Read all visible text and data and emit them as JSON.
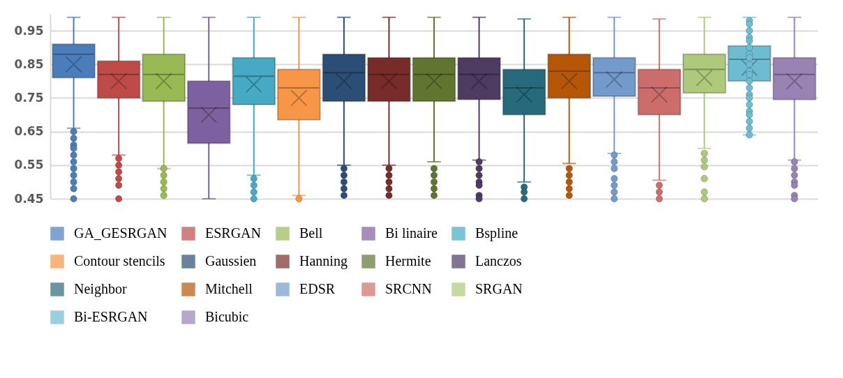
{
  "chart_data": {
    "type": "box",
    "categories": [
      null,
      null,
      null,
      null,
      null,
      null,
      null,
      null,
      null,
      null,
      null,
      null,
      null,
      null,
      null,
      null,
      null
    ],
    "ylim": [
      0.45,
      1.0
    ],
    "yticks": [
      0.45,
      0.55,
      0.65,
      0.75,
      0.85,
      0.95
    ],
    "grid": "y",
    "legend": "bottom",
    "tick_labels": "y",
    "series": [
      {
        "name": "GA_GESRGAN",
        "color": "#4a7ebb",
        "boxes": [
          {
            "low": 0.66,
            "q1": 0.81,
            "median": 0.88,
            "q3": 0.91,
            "high": 0.99,
            "mean": 0.85,
            "outliers": [
              0.65,
              0.63,
              0.61,
              0.6,
              0.58,
              0.56,
              0.54,
              0.52,
              0.5,
              0.48,
              0.45
            ]
          },
          null,
          null,
          null,
          null,
          null,
          null,
          null,
          null,
          null,
          null,
          null,
          null,
          null,
          null,
          null,
          null
        ]
      },
      {
        "name": "ESRGAN",
        "color": "#be4b48",
        "boxes": [
          null,
          {
            "low": 0.58,
            "q1": 0.75,
            "median": 0.82,
            "q3": 0.86,
            "high": 0.99,
            "mean": 0.8,
            "outliers": [
              0.57,
              0.55,
              0.53,
              0.51,
              0.49,
              0.45
            ]
          },
          null,
          null,
          null,
          null,
          null,
          null,
          null,
          null,
          null,
          null,
          null,
          null,
          null,
          null,
          null
        ]
      },
      {
        "name": "Bell",
        "color": "#98b954",
        "boxes": [
          null,
          null,
          {
            "low": 0.54,
            "q1": 0.74,
            "median": 0.82,
            "q3": 0.88,
            "high": 0.99,
            "mean": 0.8,
            "outliers": [
              0.54,
              0.52,
              0.5,
              0.48,
              0.46
            ]
          },
          null,
          null,
          null,
          null,
          null,
          null,
          null,
          null,
          null,
          null,
          null,
          null,
          null,
          null
        ]
      },
      {
        "name": "Bi linaire",
        "color": "#7d60a0",
        "boxes": [
          null,
          null,
          null,
          {
            "low": 0.45,
            "q1": 0.615,
            "median": 0.72,
            "q3": 0.8,
            "high": 0.99,
            "mean": 0.7
          },
          null,
          null,
          null,
          null,
          null,
          null,
          null,
          null,
          null,
          null,
          null,
          null,
          null
        ]
      },
      {
        "name": "Bspline",
        "color": "#46aac5",
        "boxes": [
          null,
          null,
          null,
          null,
          {
            "low": 0.52,
            "q1": 0.73,
            "median": 0.815,
            "q3": 0.87,
            "high": 0.99,
            "mean": 0.79,
            "outliers": [
              0.51,
              0.49,
              0.47,
              0.45
            ]
          },
          null,
          null,
          null,
          null,
          null,
          null,
          null,
          null,
          null,
          null,
          null,
          null
        ]
      },
      {
        "name": "Contour stencils",
        "color": "#f79646",
        "boxes": [
          null,
          null,
          null,
          null,
          null,
          {
            "low": 0.46,
            "q1": 0.685,
            "median": 0.78,
            "q3": 0.835,
            "high": 0.99,
            "mean": 0.75,
            "outliers": [
              0.45
            ]
          },
          null,
          null,
          null,
          null,
          null,
          null,
          null,
          null,
          null,
          null,
          null
        ]
      },
      {
        "name": "Gaussien",
        "color": "#2c4d75",
        "boxes": [
          null,
          null,
          null,
          null,
          null,
          null,
          {
            "low": 0.55,
            "q1": 0.74,
            "median": 0.825,
            "q3": 0.88,
            "high": 0.99,
            "mean": 0.8,
            "outliers": [
              0.54,
              0.52,
              0.5,
              0.48,
              0.46
            ]
          },
          null,
          null,
          null,
          null,
          null,
          null,
          null,
          null,
          null,
          null
        ]
      },
      {
        "name": "Hanning",
        "color": "#772c2a",
        "boxes": [
          null,
          null,
          null,
          null,
          null,
          null,
          null,
          {
            "low": 0.55,
            "q1": 0.74,
            "median": 0.82,
            "q3": 0.87,
            "high": 0.99,
            "mean": 0.8,
            "outliers": [
              0.54,
              0.52,
              0.5,
              0.48,
              0.46
            ]
          },
          null,
          null,
          null,
          null,
          null,
          null,
          null,
          null,
          null
        ]
      },
      {
        "name": "Hermite",
        "color": "#5f7530",
        "boxes": [
          null,
          null,
          null,
          null,
          null,
          null,
          null,
          null,
          {
            "low": 0.56,
            "q1": 0.74,
            "median": 0.82,
            "q3": 0.87,
            "high": 0.99,
            "mean": 0.8,
            "outliers": [
              0.54,
              0.52,
              0.5,
              0.48,
              0.46
            ]
          },
          null,
          null,
          null,
          null,
          null,
          null,
          null,
          null
        ]
      },
      {
        "name": "Lanczos",
        "color": "#4d3b62",
        "boxes": [
          null,
          null,
          null,
          null,
          null,
          null,
          null,
          null,
          null,
          {
            "low": 0.565,
            "q1": 0.745,
            "median": 0.82,
            "q3": 0.87,
            "high": 0.99,
            "mean": 0.8,
            "outliers": [
              0.56,
              0.54,
              0.52,
              0.5,
              0.49,
              0.46,
              0.45
            ]
          },
          null,
          null,
          null,
          null,
          null,
          null,
          null
        ]
      },
      {
        "name": "Neighbor",
        "color": "#276a7c",
        "boxes": [
          null,
          null,
          null,
          null,
          null,
          null,
          null,
          null,
          null,
          null,
          {
            "low": 0.5,
            "q1": 0.7,
            "median": 0.78,
            "q3": 0.835,
            "high": 0.985,
            "mean": 0.76,
            "outliers": [
              0.485,
              0.47,
              0.45
            ]
          },
          null,
          null,
          null,
          null,
          null,
          null
        ]
      },
      {
        "name": "Mitchell",
        "color": "#b65708",
        "boxes": [
          null,
          null,
          null,
          null,
          null,
          null,
          null,
          null,
          null,
          null,
          null,
          {
            "low": 0.555,
            "q1": 0.75,
            "median": 0.83,
            "q3": 0.88,
            "high": 0.99,
            "mean": 0.8,
            "outliers": [
              0.54,
              0.52,
              0.5,
              0.48,
              0.46
            ]
          },
          null,
          null,
          null,
          null,
          null
        ]
      },
      {
        "name": "EDSR",
        "color": "#729aca",
        "boxes": [
          null,
          null,
          null,
          null,
          null,
          null,
          null,
          null,
          null,
          null,
          null,
          null,
          {
            "low": 0.585,
            "q1": 0.755,
            "median": 0.825,
            "q3": 0.87,
            "high": 0.99,
            "mean": 0.805,
            "outliers": [
              0.58,
              0.56,
              0.54,
              0.51,
              0.49,
              0.47,
              0.45
            ]
          },
          null,
          null,
          null,
          null
        ]
      },
      {
        "name": "SRCNN",
        "color": "#cd6d6b",
        "boxes": [
          null,
          null,
          null,
          null,
          null,
          null,
          null,
          null,
          null,
          null,
          null,
          null,
          null,
          {
            "low": 0.505,
            "q1": 0.7,
            "median": 0.78,
            "q3": 0.835,
            "high": 0.985,
            "mean": 0.76,
            "outliers": [
              0.49,
              0.47,
              0.45
            ]
          },
          null,
          null,
          null
        ]
      },
      {
        "name": "SRGAN",
        "color": "#afc97a",
        "boxes": [
          null,
          null,
          null,
          null,
          null,
          null,
          null,
          null,
          null,
          null,
          null,
          null,
          null,
          null,
          {
            "low": 0.6,
            "q1": 0.765,
            "median": 0.835,
            "q3": 0.88,
            "high": 0.99,
            "mean": 0.81,
            "outliers": [
              0.585,
              0.565,
              0.545,
              0.51,
              0.47,
              0.45
            ]
          },
          null,
          null
        ]
      },
      {
        "name": "Bi-ESRGAN",
        "color": "#6dbcd1",
        "boxes": [
          null,
          null,
          null,
          null,
          null,
          null,
          null,
          null,
          null,
          null,
          null,
          null,
          null,
          null,
          null,
          {
            "low": 0.64,
            "q1": 0.8,
            "median": 0.865,
            "q3": 0.905,
            "high": 0.99,
            "mean": 0.84,
            "outliers": [
              0.98,
              0.97,
              0.95,
              0.93,
              0.92,
              0.9,
              0.88,
              0.87,
              0.85,
              0.83,
              0.82,
              0.8,
              0.78,
              0.76,
              0.75,
              0.73,
              0.71,
              0.7,
              0.68,
              0.66,
              0.64
            ]
          },
          null
        ]
      },
      {
        "name": "Bicubic",
        "color": "#9983b5",
        "boxes": [
          null,
          null,
          null,
          null,
          null,
          null,
          null,
          null,
          null,
          null,
          null,
          null,
          null,
          null,
          null,
          null,
          {
            "low": 0.565,
            "q1": 0.745,
            "median": 0.82,
            "q3": 0.87,
            "high": 0.99,
            "mean": 0.8,
            "outliers": [
              0.56,
              0.54,
              0.52,
              0.5,
              0.49,
              0.46,
              0.45
            ]
          }
        ]
      }
    ]
  }
}
